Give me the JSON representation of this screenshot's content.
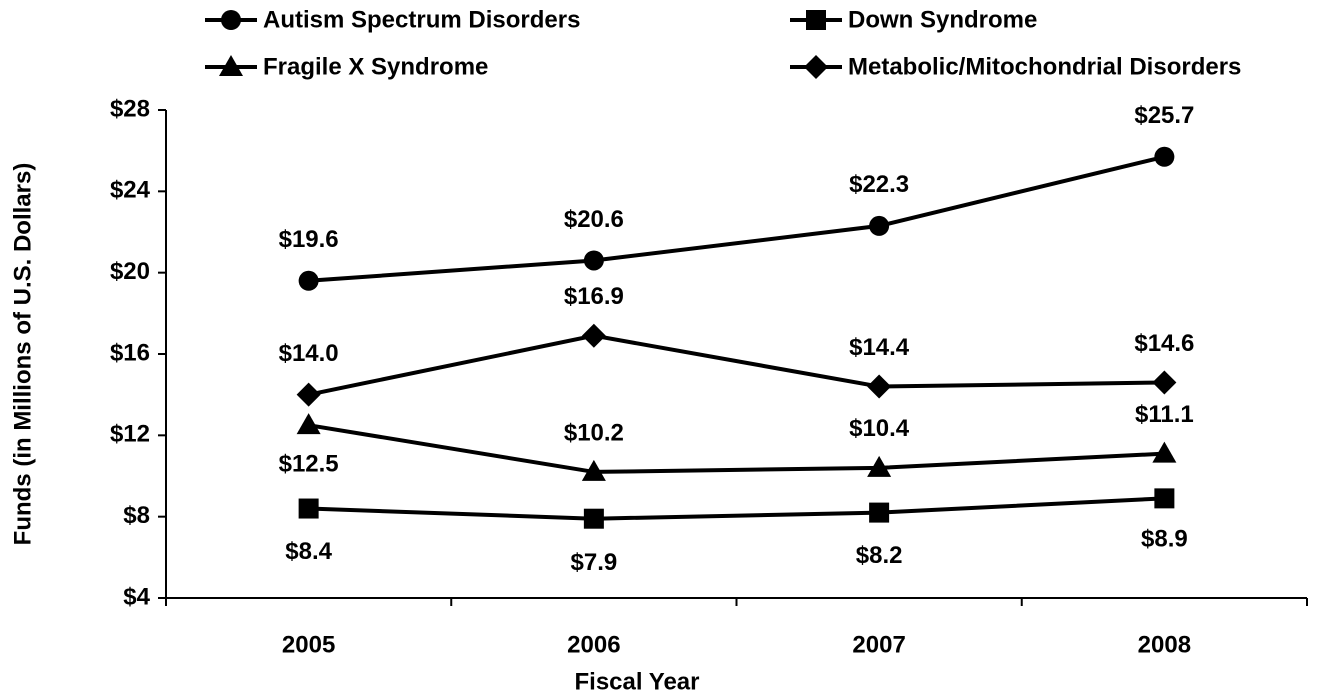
{
  "chart_data": {
    "type": "line",
    "x_label": "Fiscal Year",
    "y_label": "Funds (in Millions of U.S. Dollars)",
    "categories": [
      "2005",
      "2006",
      "2007",
      "2008"
    ],
    "series": [
      {
        "name": "Autism Spectrum Disorders",
        "color": "#000000",
        "marker": "circle",
        "values": [
          19.6,
          20.6,
          22.3,
          25.7
        ],
        "value_labels": [
          "$19.6",
          "$20.6",
          "$22.3",
          "$25.7"
        ]
      },
      {
        "name": "Down Syndrome",
        "color": "#000000",
        "marker": "square",
        "values": [
          8.4,
          7.9,
          8.2,
          8.9
        ],
        "value_labels": [
          "$8.4",
          "$7.9",
          "$8.2",
          "$8.9"
        ]
      },
      {
        "name": "Fragile X Syndrome",
        "color": "#000000",
        "marker": "triangle",
        "values": [
          12.5,
          10.2,
          10.4,
          11.1
        ],
        "value_labels": [
          "$12.5",
          "$10.2",
          "$10.4",
          "$11.1"
        ]
      },
      {
        "name": "Metabolic/Mitochondrial Disorders",
        "color": "#000000",
        "marker": "diamond",
        "values": [
          14.0,
          16.9,
          14.4,
          14.6
        ],
        "value_labels": [
          "$14.0",
          "$16.9",
          "$14.4",
          "$14.6"
        ]
      }
    ],
    "ylim": [
      4,
      28
    ],
    "yticks": [
      {
        "value": 4,
        "label": "$4"
      },
      {
        "value": 8,
        "label": "$8"
      },
      {
        "value": 12,
        "label": "$12"
      },
      {
        "value": 16,
        "label": "$16"
      },
      {
        "value": 20,
        "label": "$20"
      },
      {
        "value": 24,
        "label": "$24"
      },
      {
        "value": 28,
        "label": "$28"
      }
    ],
    "grid": false
  }
}
